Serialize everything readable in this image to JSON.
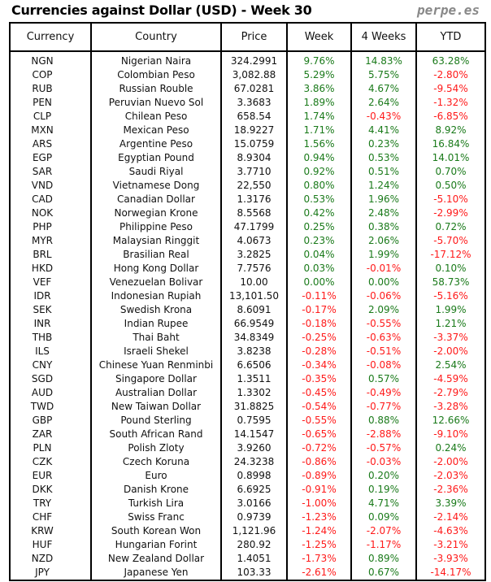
{
  "title": "Currencies against Dollar (USD) - Week 30",
  "brand": "perpe.es",
  "colors": {
    "positive": "#1a7a1a",
    "negative": "#ff1a1a"
  },
  "columns": [
    "Currency",
    "Country",
    "Price",
    "Week",
    "4 Weeks",
    "YTD"
  ],
  "rows": [
    [
      "NGN",
      "Nigerian Naira",
      "324.2991",
      "9.76%",
      "14.83%",
      "63.28%"
    ],
    [
      "COP",
      "Colombian Peso",
      "3,082.88",
      "5.29%",
      "5.75%",
      "-2.80%"
    ],
    [
      "RUB",
      "Russian Rouble",
      "67.0281",
      "3.86%",
      "4.67%",
      "-9.54%"
    ],
    [
      "PEN",
      "Peruvian Nuevo Sol",
      "3.3683",
      "1.89%",
      "2.64%",
      "-1.32%"
    ],
    [
      "CLP",
      "Chilean Peso",
      "658.54",
      "1.74%",
      "-0.43%",
      "-6.85%"
    ],
    [
      "MXN",
      "Mexican Peso",
      "18.9227",
      "1.71%",
      "4.41%",
      "8.92%"
    ],
    [
      "ARS",
      "Argentine Peso",
      "15.0759",
      "1.56%",
      "0.23%",
      "16.84%"
    ],
    [
      "EGP",
      "Egyptian Pound",
      "8.9304",
      "0.94%",
      "0.53%",
      "14.01%"
    ],
    [
      "SAR",
      "Saudi Riyal",
      "3.7710",
      "0.92%",
      "0.51%",
      "0.70%"
    ],
    [
      "VND",
      "Vietnamese Dong",
      "22,550",
      "0.80%",
      "1.24%",
      "0.50%"
    ],
    [
      "CAD",
      "Canadian Dollar",
      "1.3176",
      "0.53%",
      "1.96%",
      "-5.10%"
    ],
    [
      "NOK",
      "Norwegian Krone",
      "8.5568",
      "0.42%",
      "2.48%",
      "-2.99%"
    ],
    [
      "PHP",
      "Philippine Peso",
      "47.1799",
      "0.25%",
      "0.38%",
      "0.72%"
    ],
    [
      "MYR",
      "Malaysian Ringgit",
      "4.0673",
      "0.23%",
      "2.06%",
      "-5.70%"
    ],
    [
      "BRL",
      "Brasilian Real",
      "3.2825",
      "0.04%",
      "1.99%",
      "-17.12%"
    ],
    [
      "HKD",
      "Hong Kong Dollar",
      "7.7576",
      "0.03%",
      "-0.01%",
      "0.10%"
    ],
    [
      "VEF",
      "Venezuelan Bolivar",
      "10.00",
      "0.00%",
      "0.00%",
      "58.73%"
    ],
    [
      "IDR",
      "Indonesian Rupiah",
      "13,101.50",
      "-0.11%",
      "-0.06%",
      "-5.16%"
    ],
    [
      "SEK",
      "Swedish Krona",
      "8.6091",
      "-0.17%",
      "2.09%",
      "1.99%"
    ],
    [
      "INR",
      "Indian Rupee",
      "66.9549",
      "-0.18%",
      "-0.55%",
      "1.21%"
    ],
    [
      "THB",
      "Thai Baht",
      "34.8349",
      "-0.25%",
      "-0.63%",
      "-3.37%"
    ],
    [
      "ILS",
      "Israeli Shekel",
      "3.8238",
      "-0.28%",
      "-0.51%",
      "-2.00%"
    ],
    [
      "CNY",
      "Chinese Yuan Renminbi",
      "6.6506",
      "-0.34%",
      "-0.08%",
      "2.54%"
    ],
    [
      "SGD",
      "Singapore Dollar",
      "1.3511",
      "-0.35%",
      "0.57%",
      "-4.59%"
    ],
    [
      "AUD",
      "Australian Dollar",
      "1.3302",
      "-0.45%",
      "-0.49%",
      "-2.79%"
    ],
    [
      "TWD",
      "New Taiwan Dollar",
      "31.8825",
      "-0.54%",
      "-0.77%",
      "-3.28%"
    ],
    [
      "GBP",
      "Pound Sterling",
      "0.7595",
      "-0.55%",
      "0.88%",
      "12.66%"
    ],
    [
      "ZAR",
      "South African Rand",
      "14.1547",
      "-0.65%",
      "-2.88%",
      "-9.10%"
    ],
    [
      "PLN",
      "Polish Zloty",
      "3.9260",
      "-0.72%",
      "-0.57%",
      "0.24%"
    ],
    [
      "CZK",
      "Czech Koruna",
      "24.3238",
      "-0.86%",
      "-0.03%",
      "-2.00%"
    ],
    [
      "EUR",
      "Euro",
      "0.8998",
      "-0.89%",
      "0.20%",
      "-2.03%"
    ],
    [
      "DKK",
      "Danish Krone",
      "6.6925",
      "-0.91%",
      "0.19%",
      "-2.36%"
    ],
    [
      "TRY",
      "Turkish Lira",
      "3.0166",
      "-1.00%",
      "4.71%",
      "3.39%"
    ],
    [
      "CHF",
      "Swiss Franc",
      "0.9739",
      "-1.23%",
      "0.09%",
      "-2.14%"
    ],
    [
      "KRW",
      "South Korean Won",
      "1,121.96",
      "-1.24%",
      "-2.07%",
      "-4.63%"
    ],
    [
      "HUF",
      "Hungarian Forint",
      "280.92",
      "-1.25%",
      "-1.17%",
      "-3.21%"
    ],
    [
      "NZD",
      "New Zealand Dollar",
      "1.4051",
      "-1.73%",
      "0.89%",
      "-3.93%"
    ],
    [
      "JPY",
      "Japanese Yen",
      "103.33",
      "-2.61%",
      "0.67%",
      "-14.17%"
    ]
  ]
}
